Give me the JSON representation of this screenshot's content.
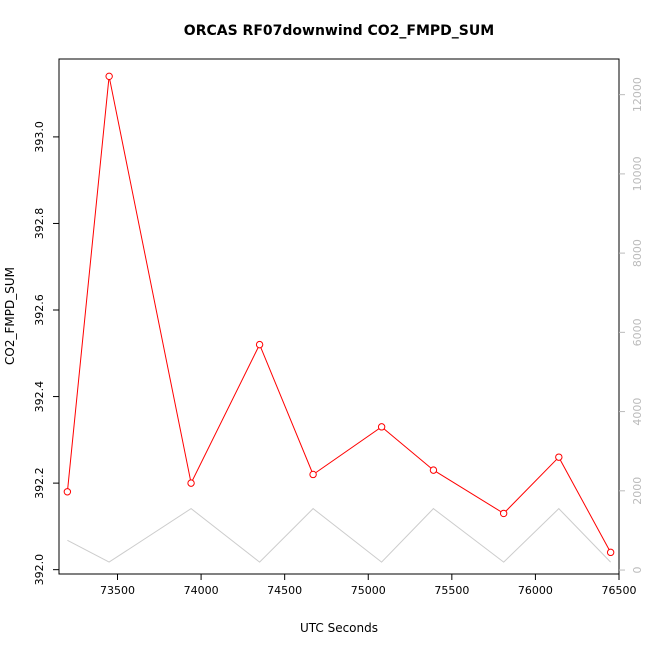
{
  "chart_data": {
    "type": "line",
    "title": "ORCAS RF07downwind CO2_FMPD_SUM",
    "xlabel": "UTC Seconds",
    "ylabel": "CO2_FMPD_SUM",
    "xlim": [
      73150,
      76500
    ],
    "ylim": [
      391.99,
      393.18
    ],
    "y2lim": [
      -100,
      12900
    ],
    "x_ticks": [
      73500,
      74000,
      74500,
      75000,
      75500,
      76000,
      76500
    ],
    "y_ticks": [
      392.0,
      392.2,
      392.4,
      392.6,
      392.8,
      393.0
    ],
    "y2_ticks": [
      0,
      2000,
      4000,
      6000,
      8000,
      10000,
      12000
    ],
    "x_tick_labels": [
      "73500",
      "74000",
      "74500",
      "75000",
      "75500",
      "76000",
      "76500"
    ],
    "y_tick_labels": [
      "392.0",
      "392.2",
      "392.4",
      "392.6",
      "392.8",
      "393.0"
    ],
    "y2_tick_labels": [
      "0",
      "2000",
      "4000",
      "6000",
      "8000",
      "10000",
      "12000"
    ],
    "grid": false,
    "series": [
      {
        "axis": "left",
        "color": "#ff0000",
        "marker": "open-circle",
        "x": [
          73200,
          73450,
          73940,
          74350,
          74670,
          75080,
          75390,
          75810,
          76140,
          76450
        ],
        "values": [
          392.18,
          393.14,
          392.2,
          392.52,
          392.22,
          392.33,
          392.23,
          392.13,
          392.26,
          392.04
        ]
      },
      {
        "axis": "right",
        "color": "#cccccc",
        "marker": "none",
        "x": [
          73200,
          73450,
          73940,
          74350,
          74670,
          75080,
          75390,
          75810,
          76140,
          76450
        ],
        "values": [
          750,
          200,
          1550,
          200,
          1550,
          200,
          1550,
          200,
          1550,
          200
        ]
      }
    ]
  }
}
